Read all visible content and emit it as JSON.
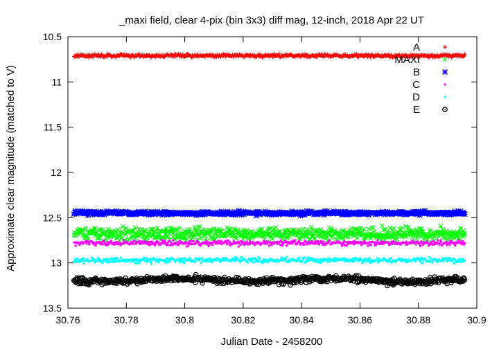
{
  "chart_data": {
    "type": "scatter",
    "title": "_maxi field, clear 4-pix (bin 3x3) diff mag, 12-inch, 2018 Apr 22 UT",
    "xlabel": "Julian Date - 2458200",
    "ylabel": "Approximate clear magnitude (matched to V)",
    "xlim": [
      30.76,
      30.9
    ],
    "ylim": [
      10.5,
      13.5
    ],
    "y_inverted": true,
    "grid": false,
    "legend_position": "top-right",
    "x_ticks": [
      "30.76",
      "30.78",
      "30.8",
      "30.82",
      "30.84",
      "30.86",
      "30.88",
      "30.9"
    ],
    "y_ticks": [
      "10.5",
      "11",
      "11.5",
      "12",
      "12.5",
      "13",
      "13.5"
    ],
    "x_range": [
      30.762,
      30.896
    ],
    "series": [
      {
        "name": "A",
        "color": "#ff0000",
        "marker": "plus",
        "mean": 10.71,
        "scatter": 0.012,
        "count": 600
      },
      {
        "name": "MAXI",
        "color": "#00ff00",
        "marker": "cross",
        "mean": 12.68,
        "scatter": 0.05,
        "count": 700
      },
      {
        "name": "B",
        "color": "#0000ff",
        "marker": "star",
        "mean": 12.45,
        "scatter": 0.015,
        "count": 600
      },
      {
        "name": "C",
        "color": "#ff00ff",
        "marker": "square",
        "mean": 12.78,
        "scatter": 0.02,
        "count": 600
      },
      {
        "name": "D",
        "color": "#00ffff",
        "marker": "square",
        "mean": 12.97,
        "scatter": 0.02,
        "count": 600
      },
      {
        "name": "E",
        "color": "#000000",
        "marker": "circle",
        "mean": 13.19,
        "scatter": 0.025,
        "count": 600
      }
    ]
  }
}
